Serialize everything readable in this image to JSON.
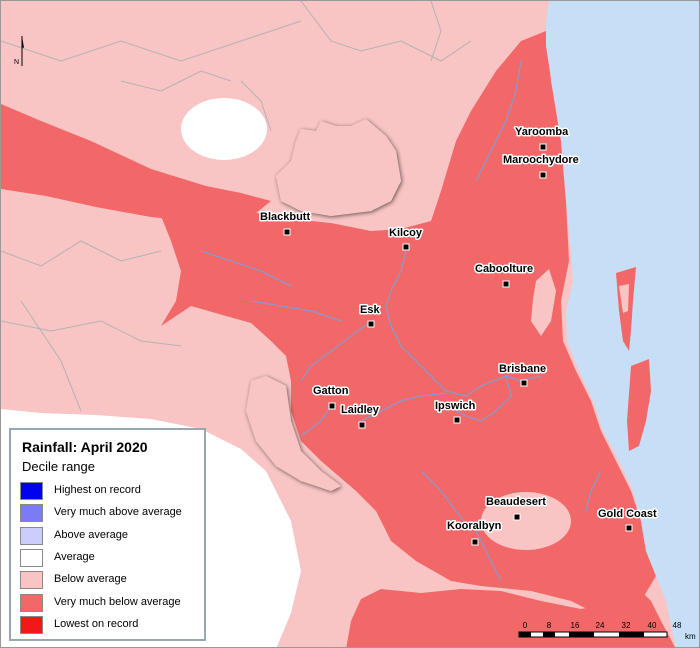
{
  "legend": {
    "title": "Rainfall: April 2020",
    "subtitle": "Decile range",
    "items": [
      {
        "label": "Highest on record",
        "color": "#0000f0"
      },
      {
        "label": "Very much above average",
        "color": "#7b7bf5"
      },
      {
        "label": "Above average",
        "color": "#cdcdfb"
      },
      {
        "label": "Average",
        "color": "#ffffff"
      },
      {
        "label": "Below average",
        "color": "#f8c4c4"
      },
      {
        "label": "Very much below average",
        "color": "#f26868"
      },
      {
        "label": "Lowest on record",
        "color": "#f21818"
      }
    ]
  },
  "towns": [
    "Yaroomba",
    "Maroochydore",
    "Blackbutt",
    "Kilcoy",
    "Caboolture",
    "Esk",
    "Brisbane",
    "Gatton",
    "Laidley",
    "Ipswich",
    "Beaudesert",
    "Gold Coast",
    "Kooralbyn"
  ],
  "scale_bar": {
    "ticks": [
      "0",
      "8",
      "16",
      "24",
      "32",
      "40",
      "48"
    ],
    "unit": "km"
  },
  "north_label": "N",
  "colors": {
    "ocean": "#c6dff7",
    "below_average": "#f8c4c4",
    "very_much_below": "#f26868",
    "average": "#ffffff",
    "rivers": "#8f97c8",
    "borders": "#b3b3b3"
  }
}
